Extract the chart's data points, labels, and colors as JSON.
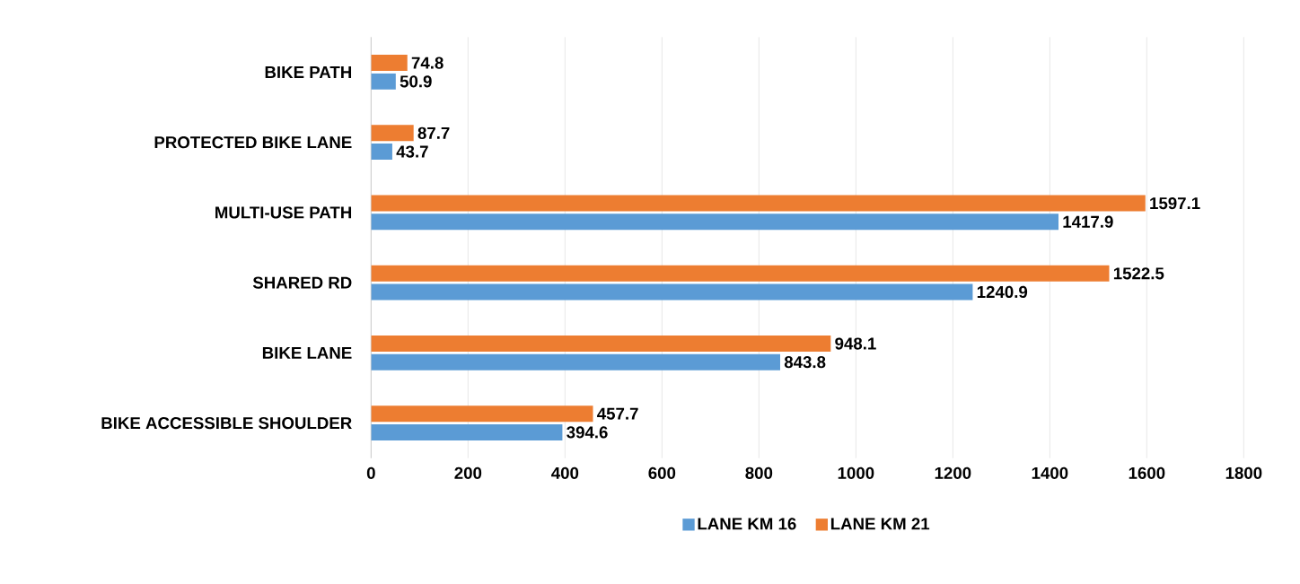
{
  "chart_data": {
    "type": "bar",
    "orientation": "horizontal",
    "categories": [
      "BIKE PATH",
      "PROTECTED BIKE LANE",
      "MULTI-USE PATH",
      "SHARED RD",
      "BIKE LANE",
      "BIKE ACCESSIBLE SHOULDER"
    ],
    "series": [
      {
        "name": "LANE KM 16",
        "color": "#5b9bd5",
        "values": [
          50.9,
          43.7,
          1417.9,
          1240.9,
          843.8,
          394.6
        ]
      },
      {
        "name": "LANE KM 21",
        "color": "#ed7d31",
        "values": [
          74.8,
          87.7,
          1597.1,
          1522.5,
          948.1,
          457.7
        ]
      }
    ],
    "xlim": [
      0,
      1800
    ],
    "xticks": [
      0,
      200,
      400,
      600,
      800,
      1000,
      1200,
      1400,
      1600,
      1800
    ],
    "grid": "x",
    "legend": "bottom",
    "data_labels": true
  }
}
